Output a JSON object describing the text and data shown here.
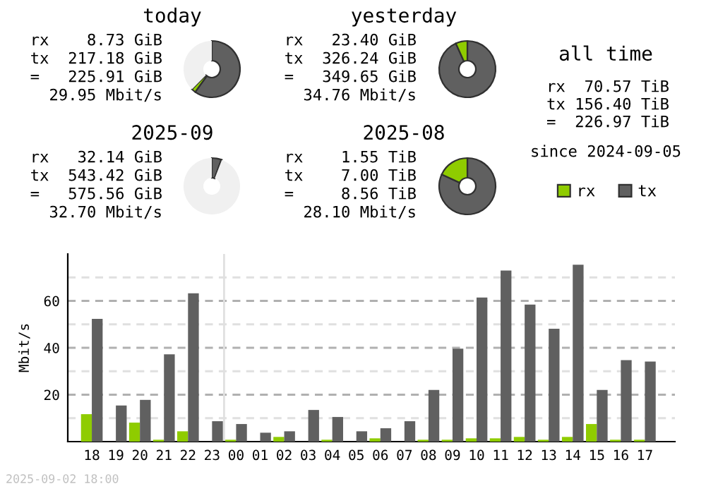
{
  "chart_data": [
    {
      "type": "donut",
      "title": "today",
      "categories": [
        null,
        null,
        null
      ],
      "values": [
        60.0,
        2.4,
        37.6
      ],
      "colors": [
        "#606060",
        "#8fcc00",
        "#f0f0f0"
      ],
      "annotations": [
        "rx 8.73 GiB",
        "tx 217.18 GiB",
        "= 225.91 GiB",
        "29.95 Mbit/s"
      ]
    },
    {
      "type": "donut",
      "title": "yesterday",
      "categories": [
        null,
        null,
        null
      ],
      "values": [
        93.3,
        6.7,
        0
      ],
      "colors": [
        "#606060",
        "#8fcc00",
        "#f0f0f0"
      ],
      "annotations": [
        "rx 23.40 GiB",
        "tx 326.24 GiB",
        "= 349.65 GiB",
        "34.76 Mbit/s"
      ]
    },
    {
      "type": "donut",
      "title": "2025-09",
      "categories": [
        null,
        null,
        null
      ],
      "values": [
        5.5,
        0.3,
        94.2
      ],
      "colors": [
        "#606060",
        "#8fcc00",
        "#f0f0f0"
      ],
      "annotations": [
        "rx 32.14 GiB",
        "tx 543.42 GiB",
        "= 575.56 GiB",
        "32.70 Mbit/s"
      ]
    },
    {
      "type": "donut",
      "title": "2025-08",
      "categories": [
        null,
        null,
        null
      ],
      "values": [
        81.9,
        18.1,
        0
      ],
      "colors": [
        "#606060",
        "#8fcc00",
        "#f0f0f0"
      ],
      "annotations": [
        "rx 1.55 TiB",
        "tx 7.00 TiB",
        "= 8.56 TiB",
        "28.10 Mbit/s"
      ]
    },
    {
      "type": "other",
      "title": "all time",
      "annotations": [
        "rx 70.57 TiB",
        "tx 156.40 TiB",
        "= 226.97 TiB",
        "since 2024-09-05"
      ]
    },
    {
      "type": "bar",
      "ylabel": "Mbit/s",
      "categories": [
        "18",
        "19",
        "20",
        "21",
        "22",
        "23",
        "00",
        "01",
        "02",
        "03",
        "04",
        "05",
        "06",
        "07",
        "08",
        "09",
        "10",
        "11",
        "12",
        "13",
        "14",
        "15",
        "16",
        "17"
      ],
      "series": [
        {
          "name": "rx",
          "color": "#8fcc00",
          "values": [
            11.7,
            0,
            8.1,
            0.8,
            4.4,
            0,
            0.8,
            0,
            2.0,
            0,
            0.8,
            0,
            1.4,
            0,
            0.8,
            0.8,
            1.4,
            1.4,
            2.0,
            0.8,
            2.0,
            7.5,
            0.8,
            0.8
          ]
        },
        {
          "name": "tx",
          "color": "#606060",
          "values": [
            52.3,
            15.4,
            17.8,
            37.2,
            63.2,
            8.7,
            7.5,
            3.8,
            4.4,
            13.5,
            10.5,
            4.4,
            5.7,
            8.7,
            22.0,
            39.6,
            61.4,
            72.9,
            58.4,
            48.1,
            75.4,
            22.0,
            34.7,
            34.1
          ]
        }
      ],
      "ylim": [
        0,
        80
      ],
      "yticks": [
        {
          "value": 10,
          "label": null
        },
        20,
        {
          "value": 30,
          "label": null
        },
        40,
        {
          "value": 50,
          "label": null
        },
        60,
        {
          "value": 70,
          "label": null
        }
      ],
      "grid": "y",
      "legend": "top right",
      "ref_lines": [
        {
          "axis": "x",
          "value": "00",
          "color": "#e0e0e0"
        }
      ],
      "annotations": [
        "2025-09-02 18:00"
      ]
    }
  ]
}
